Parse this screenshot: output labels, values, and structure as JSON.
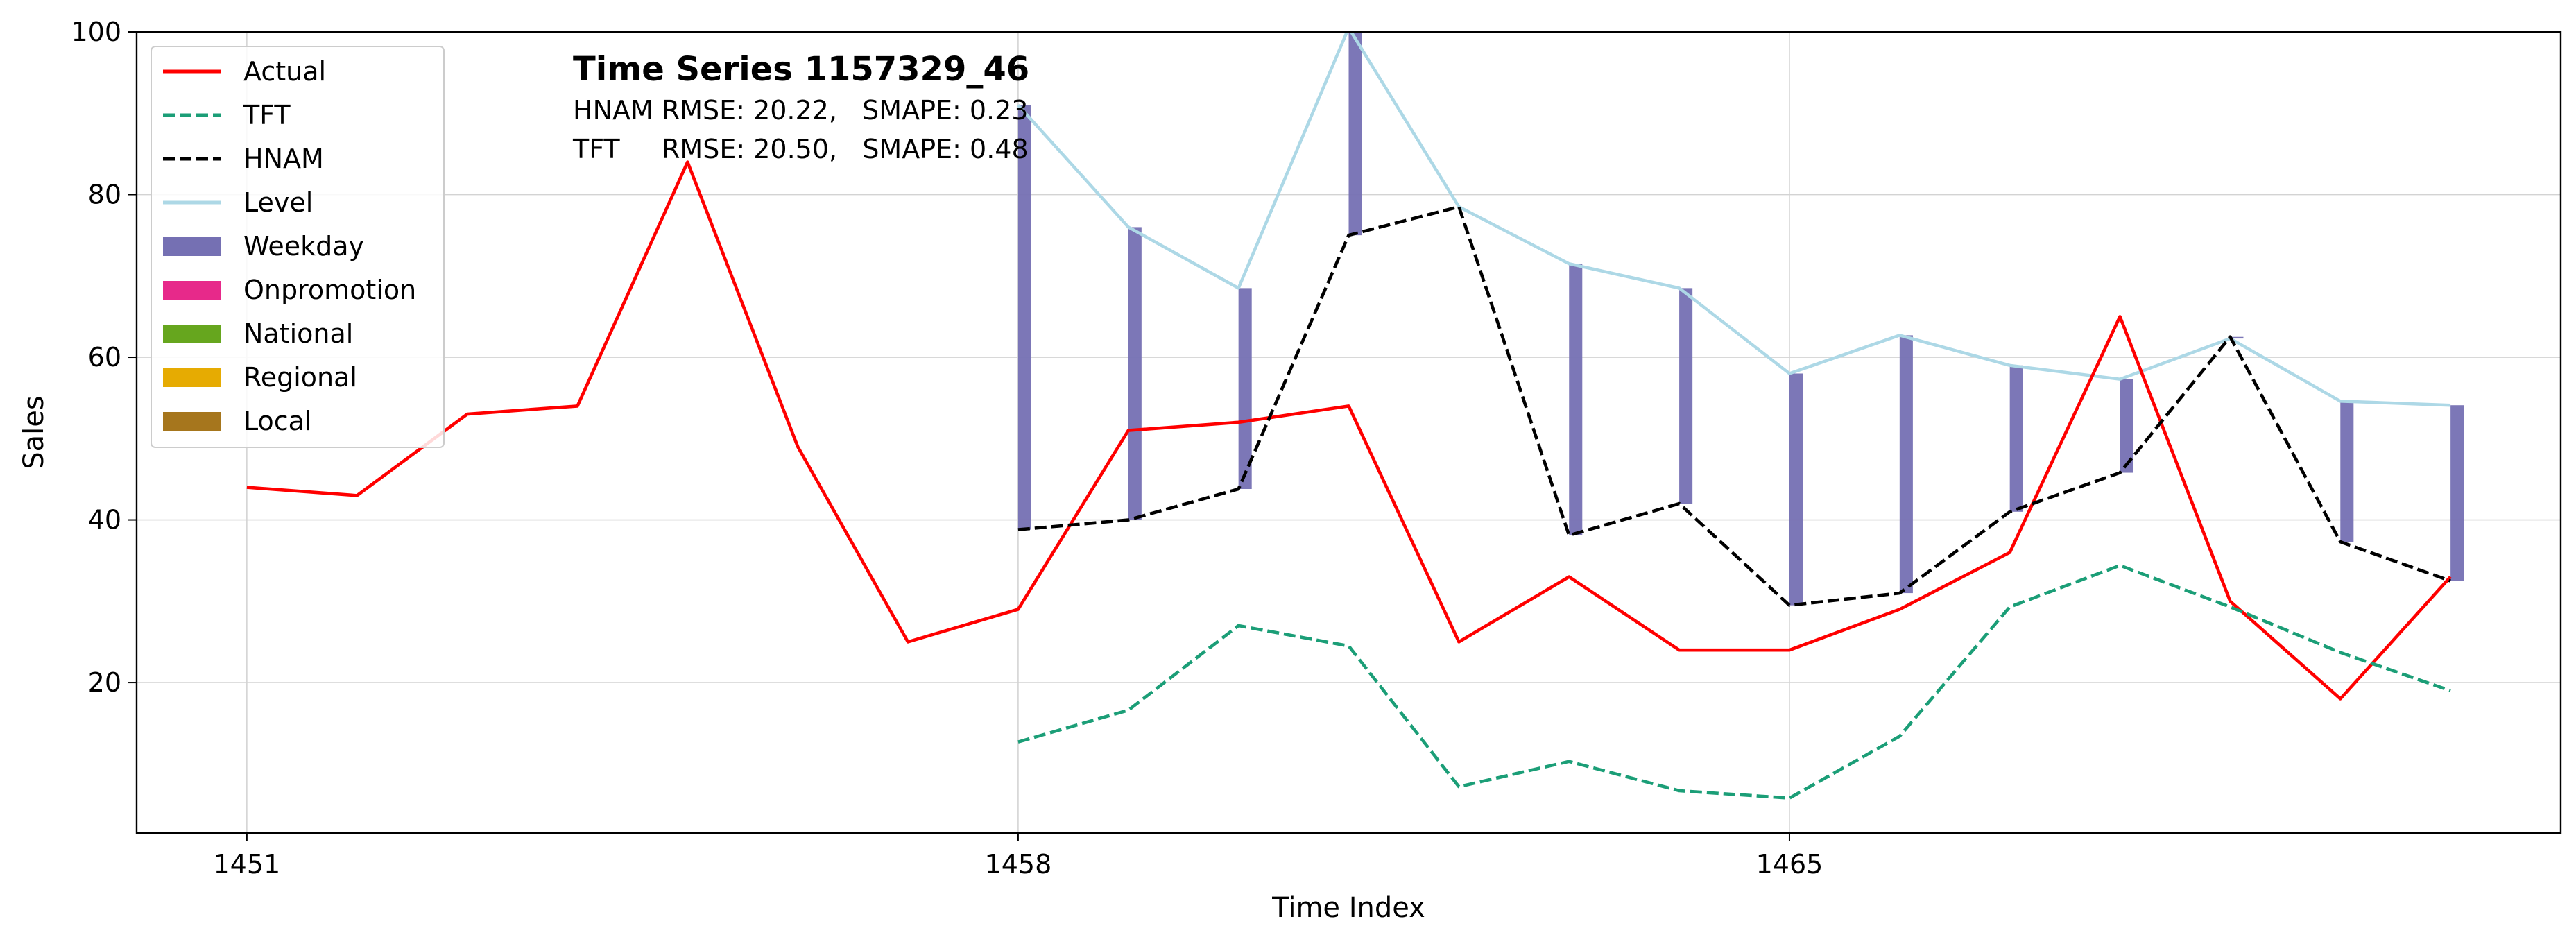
{
  "chart_data": {
    "type": "line",
    "title": "Time Series 1157329_46",
    "subtitle_lines": [
      "HNAM RMSE: 20.22,   SMAPE: 0.23",
      "TFT     RMSE: 20.50,   SMAPE: 0.48"
    ],
    "xlabel": "Time Index",
    "ylabel": "Sales",
    "xlim": [
      1450,
      1472
    ],
    "ylim": [
      1.5,
      100
    ],
    "xticks": [
      1451,
      1458,
      1465
    ],
    "yticks": [
      20,
      40,
      60,
      80,
      100
    ],
    "grid": true,
    "legend_position": "top-left",
    "series": [
      {
        "name": "Actual",
        "style": "solid",
        "color": "#ff0000",
        "x": [
          1451,
          1452,
          1453,
          1454,
          1455,
          1456,
          1457,
          1458,
          1459,
          1460,
          1461,
          1462,
          1463,
          1464,
          1465,
          1466,
          1467,
          1468,
          1469,
          1470,
          1471
        ],
        "values": [
          44,
          43,
          53,
          54,
          84,
          49,
          25,
          29,
          51,
          52,
          54,
          25,
          33,
          24,
          24,
          29,
          36,
          65,
          30,
          18,
          33
        ]
      },
      {
        "name": "TFT",
        "style": "dashed",
        "color": "#1b9e77",
        "x": [
          1458,
          1459,
          1460,
          1461,
          1462,
          1463,
          1464,
          1465,
          1466,
          1467,
          1468,
          1469,
          1470,
          1471
        ],
        "values": [
          12.7,
          16.6,
          27,
          24.5,
          7.2,
          10.3,
          6.7,
          5.8,
          13.4,
          29.3,
          34.4,
          29.3,
          23.7,
          19
        ]
      },
      {
        "name": "HNAM",
        "style": "dashed",
        "color": "#000000",
        "x": [
          1458,
          1459,
          1460,
          1461,
          1462,
          1463,
          1464,
          1465,
          1466,
          1467,
          1468,
          1469,
          1470,
          1471
        ],
        "values": [
          38.8,
          40,
          43.8,
          75,
          78.5,
          38.1,
          42,
          29.5,
          31,
          41,
          45.8,
          62.5,
          37.3,
          32.5
        ]
      },
      {
        "name": "Level",
        "style": "solid",
        "color": "#add8e6",
        "x": [
          1458,
          1459,
          1460,
          1461,
          1462,
          1463,
          1464,
          1465,
          1466,
          1467,
          1468,
          1469,
          1470,
          1471
        ],
        "values": [
          91,
          76,
          68.5,
          100.5,
          78.5,
          71.5,
          68.5,
          58,
          62.7,
          59,
          57.3,
          62.3,
          54.6,
          54.1
        ]
      }
    ],
    "bars": [
      {
        "name": "Weekday",
        "color": "#7570b3",
        "x": [
          1458,
          1459,
          1460,
          1461,
          1462,
          1463,
          1464,
          1465,
          1466,
          1467,
          1468,
          1469,
          1470,
          1471
        ],
        "bottom": [
          38.8,
          40,
          43.8,
          75,
          78.5,
          38.1,
          42,
          29.5,
          31,
          41,
          45.8,
          62.5,
          37.3,
          32.5
        ],
        "top": [
          91,
          76,
          68.5,
          100.5,
          78.5,
          71.5,
          68.5,
          58,
          62.7,
          59,
          57.3,
          62.3,
          54.6,
          54.1
        ]
      }
    ],
    "legend": [
      {
        "label": "Actual",
        "kind": "line",
        "style": "solid",
        "color": "#ff0000"
      },
      {
        "label": "TFT",
        "kind": "line",
        "style": "dashed",
        "color": "#1b9e77"
      },
      {
        "label": "HNAM",
        "kind": "line",
        "style": "dashed",
        "color": "#000000"
      },
      {
        "label": "Level",
        "kind": "line",
        "style": "solid",
        "color": "#add8e6"
      },
      {
        "label": "Weekday",
        "kind": "patch",
        "color": "#7570b3"
      },
      {
        "label": "Onpromotion",
        "kind": "patch",
        "color": "#e7298a"
      },
      {
        "label": "National",
        "kind": "patch",
        "color": "#66a61e"
      },
      {
        "label": "Regional",
        "kind": "patch",
        "color": "#e6ab02"
      },
      {
        "label": "Local",
        "kind": "patch",
        "color": "#a6761d"
      }
    ]
  }
}
